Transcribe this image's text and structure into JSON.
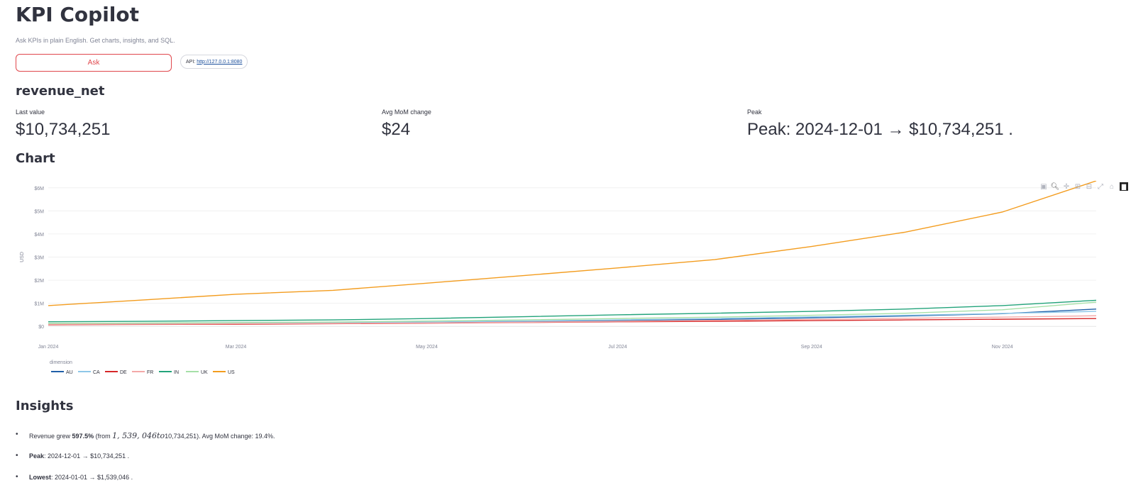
{
  "app": {
    "title": "KPI Copilot",
    "subtitle": "Ask KPIs in plain English. Get charts, insights, and SQL.",
    "ask_label": "Ask",
    "api_prefix": "API:",
    "api_url": "http://127.0.0.1:8080"
  },
  "metric": {
    "name": "revenue_net",
    "cards": [
      {
        "label": "Last value",
        "value": "$10,734,251"
      },
      {
        "label": "Avg MoM change",
        "value": "$24"
      },
      {
        "label": "Peak",
        "value": "Peak: 2024-12-01 → $10,734,251 ."
      }
    ]
  },
  "sections": {
    "chart": "Chart",
    "insights": "Insights"
  },
  "modebar": [
    "camera-icon",
    "zoom-icon",
    "pan-icon",
    "zoom-in-icon",
    "zoom-out-icon",
    "autoscale-icon",
    "reset-axes-icon",
    "plotly-logo-icon"
  ],
  "chart_data": {
    "type": "line",
    "ylabel": "USD",
    "legend_title": "dimension",
    "legend_position": "bottom-left",
    "grid": true,
    "x": [
      "2024-01-01",
      "2024-02-01",
      "2024-03-01",
      "2024-04-01",
      "2024-05-01",
      "2024-06-01",
      "2024-07-01",
      "2024-08-01",
      "2024-09-01",
      "2024-10-01",
      "2024-11-01",
      "2024-12-01"
    ],
    "x_ticks": [
      {
        "date": "2024-01-01",
        "label": "Jan 2024"
      },
      {
        "date": "2024-03-01",
        "label": "Mar 2024"
      },
      {
        "date": "2024-05-01",
        "label": "May 2024"
      },
      {
        "date": "2024-07-01",
        "label": "Jul 2024"
      },
      {
        "date": "2024-09-01",
        "label": "Sep 2024"
      },
      {
        "date": "2024-11-01",
        "label": "Nov 2024"
      }
    ],
    "y_ticks": [
      {
        "value": 0,
        "label": "$0"
      },
      {
        "value": 1000000,
        "label": "$1M"
      },
      {
        "value": 2000000,
        "label": "$2M"
      },
      {
        "value": 3000000,
        "label": "$3M"
      },
      {
        "value": 4000000,
        "label": "$4M"
      },
      {
        "value": 5000000,
        "label": "$5M"
      },
      {
        "value": 6000000,
        "label": "$6M"
      }
    ],
    "ylim": [
      -300000,
      6300000
    ],
    "series": [
      {
        "name": "AU",
        "color": "#1f5fa8",
        "values": [
          80000,
          95000,
          110000,
          130000,
          160000,
          200000,
          250000,
          300000,
          370000,
          450000,
          550000,
          750000
        ]
      },
      {
        "name": "CA",
        "color": "#8ec7e8",
        "values": [
          110000,
          125000,
          140000,
          160000,
          190000,
          230000,
          280000,
          340000,
          410000,
          480000,
          560000,
          650000
        ]
      },
      {
        "name": "DE",
        "color": "#d62728",
        "values": [
          70000,
          85000,
          95000,
          115000,
          140000,
          170000,
          200000,
          220000,
          250000,
          280000,
          310000,
          340000
        ]
      },
      {
        "name": "FR",
        "color": "#f4a9a8",
        "values": [
          90000,
          100000,
          115000,
          130000,
          150000,
          180000,
          220000,
          260000,
          300000,
          350000,
          400000,
          460000
        ]
      },
      {
        "name": "IN",
        "color": "#22a37a",
        "values": [
          200000,
          220000,
          250000,
          280000,
          340000,
          420000,
          500000,
          570000,
          650000,
          750000,
          900000,
          1130000
        ]
      },
      {
        "name": "UK",
        "color": "#a6e0a8",
        "values": [
          130000,
          145000,
          165000,
          190000,
          230000,
          280000,
          340000,
          400000,
          480000,
          570000,
          720000,
          1050000
        ]
      },
      {
        "name": "US",
        "color": "#f39c1e",
        "values": [
          900000,
          1150000,
          1390000,
          1560000,
          1870000,
          2200000,
          2530000,
          2890000,
          3460000,
          4080000,
          4950000,
          6300000
        ]
      }
    ]
  },
  "insights": [
    {
      "pre": "Revenue grew ",
      "bold": "597.5%",
      "mid": " (from ",
      "math": "1, 539, 046to",
      "post": "10,734,251). Avg MoM change: 19.4%."
    },
    {
      "bold": "Peak",
      "post": ": 2024-12-01 → $10,734,251 ."
    },
    {
      "bold": "Lowest",
      "post": ": 2024-01-01 → $1,539,046 ."
    }
  ]
}
